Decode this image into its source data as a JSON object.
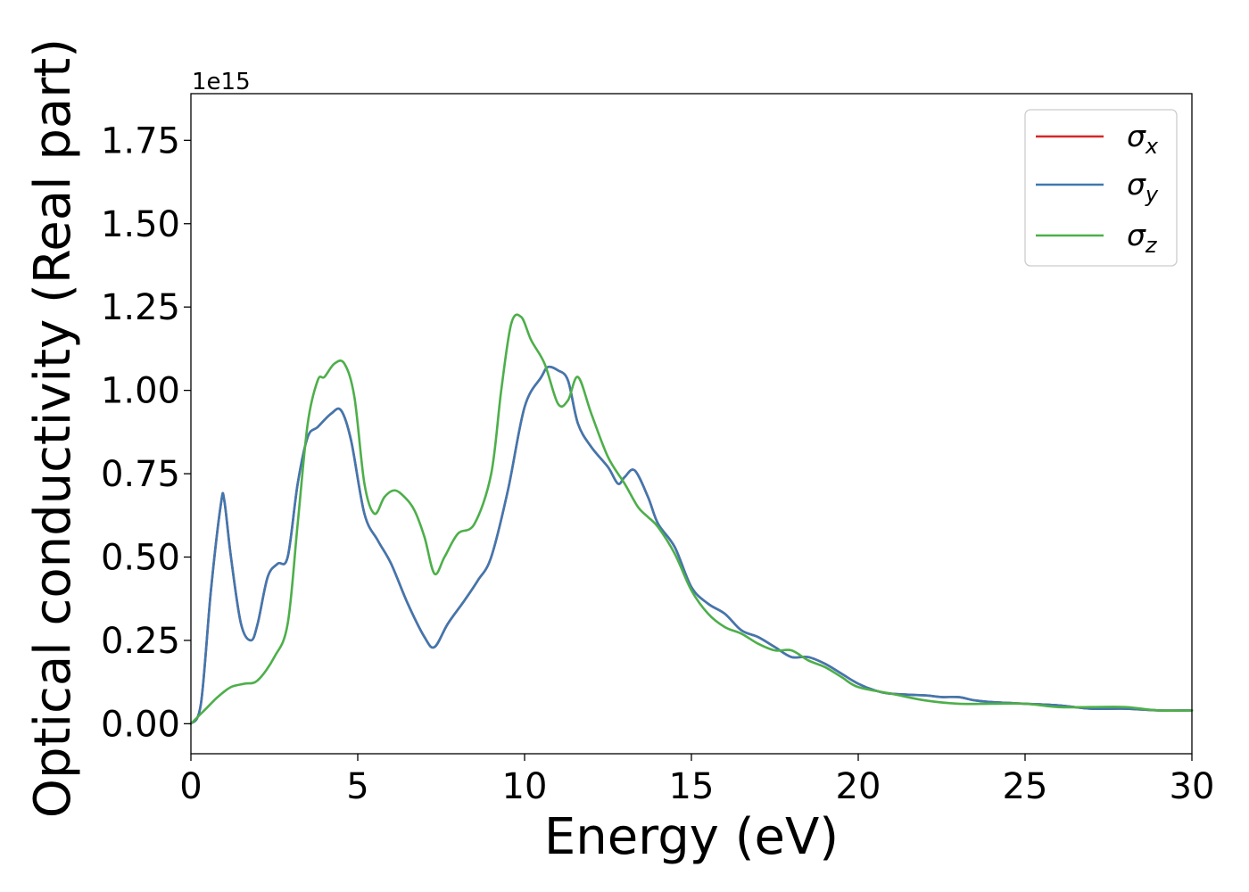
{
  "chart_data": {
    "type": "line",
    "xlabel": "Energy (eV)",
    "ylabel": "Optical conductivity (Real part)",
    "offset_label": "1e15",
    "xlim": [
      0,
      30
    ],
    "ylim": [
      -0.09,
      1.89
    ],
    "xticks": [
      0,
      5,
      10,
      15,
      20,
      25,
      30
    ],
    "xtick_labels": [
      "0",
      "5",
      "10",
      "15",
      "20",
      "25",
      "30"
    ],
    "yticks": [
      0.0,
      0.25,
      0.5,
      0.75,
      1.0,
      1.25,
      1.5,
      1.75
    ],
    "ytick_labels": [
      "0.00",
      "0.25",
      "0.50",
      "0.75",
      "1.00",
      "1.25",
      "1.50",
      "1.75"
    ],
    "grid": false,
    "legend_position": "top-right",
    "series": [
      {
        "name": "σx",
        "legend_base": "σ",
        "legend_sub": "x",
        "color": "#d62728",
        "x": [
          0,
          0.3,
          0.6,
          0.9,
          1.0,
          1.2,
          1.5,
          1.8,
          2.0,
          2.3,
          2.6,
          2.9,
          3.2,
          3.5,
          3.8,
          4.2,
          4.5,
          4.8,
          5.2,
          5.6,
          6.0,
          6.5,
          7.0,
          7.3,
          7.7,
          8.2,
          8.6,
          9.0,
          9.5,
          10.0,
          10.5,
          10.7,
          11.0,
          11.3,
          11.6,
          12.0,
          12.5,
          12.8,
          13.0,
          13.3,
          13.7,
          14.0,
          14.5,
          15.0,
          15.5,
          16.0,
          16.5,
          17.0,
          17.5,
          18.0,
          18.5,
          19.0,
          19.5,
          20.0,
          20.5,
          21.0,
          22.0,
          22.5,
          23.0,
          23.5,
          24.0,
          25.0,
          26.0,
          27.0,
          28.0,
          29.0,
          30.0
        ],
        "values": [
          0.0,
          0.06,
          0.4,
          0.66,
          0.67,
          0.5,
          0.3,
          0.25,
          0.3,
          0.44,
          0.48,
          0.5,
          0.72,
          0.86,
          0.89,
          0.93,
          0.94,
          0.85,
          0.63,
          0.55,
          0.48,
          0.36,
          0.26,
          0.23,
          0.3,
          0.37,
          0.43,
          0.5,
          0.7,
          0.95,
          1.04,
          1.07,
          1.06,
          1.03,
          0.9,
          0.83,
          0.77,
          0.72,
          0.74,
          0.76,
          0.68,
          0.6,
          0.53,
          0.41,
          0.36,
          0.33,
          0.28,
          0.26,
          0.23,
          0.2,
          0.2,
          0.18,
          0.15,
          0.12,
          0.1,
          0.09,
          0.085,
          0.08,
          0.08,
          0.07,
          0.065,
          0.06,
          0.055,
          0.045,
          0.045,
          0.04,
          0.04
        ]
      },
      {
        "name": "σy",
        "legend_base": "σ",
        "legend_sub": "y",
        "color": "#3f78b0",
        "x": [
          0,
          0.3,
          0.6,
          0.9,
          1.0,
          1.2,
          1.5,
          1.8,
          2.0,
          2.3,
          2.6,
          2.9,
          3.2,
          3.5,
          3.8,
          4.2,
          4.5,
          4.8,
          5.2,
          5.6,
          6.0,
          6.5,
          7.0,
          7.3,
          7.7,
          8.2,
          8.6,
          9.0,
          9.5,
          10.0,
          10.5,
          10.7,
          11.0,
          11.3,
          11.6,
          12.0,
          12.5,
          12.8,
          13.0,
          13.3,
          13.7,
          14.0,
          14.5,
          15.0,
          15.5,
          16.0,
          16.5,
          17.0,
          17.5,
          18.0,
          18.5,
          19.0,
          19.5,
          20.0,
          20.5,
          21.0,
          22.0,
          22.5,
          23.0,
          23.5,
          24.0,
          25.0,
          26.0,
          27.0,
          28.0,
          29.0,
          30.0
        ],
        "values": [
          0.0,
          0.06,
          0.4,
          0.66,
          0.67,
          0.5,
          0.3,
          0.25,
          0.3,
          0.44,
          0.48,
          0.5,
          0.72,
          0.86,
          0.89,
          0.93,
          0.94,
          0.85,
          0.63,
          0.55,
          0.48,
          0.36,
          0.26,
          0.23,
          0.3,
          0.37,
          0.43,
          0.5,
          0.7,
          0.95,
          1.04,
          1.07,
          1.06,
          1.03,
          0.9,
          0.83,
          0.77,
          0.72,
          0.74,
          0.76,
          0.68,
          0.6,
          0.53,
          0.41,
          0.36,
          0.33,
          0.28,
          0.26,
          0.23,
          0.2,
          0.2,
          0.18,
          0.15,
          0.12,
          0.1,
          0.09,
          0.085,
          0.08,
          0.08,
          0.07,
          0.065,
          0.06,
          0.055,
          0.045,
          0.045,
          0.04,
          0.04
        ]
      },
      {
        "name": "σz",
        "legend_base": "σ",
        "legend_sub": "z",
        "color": "#4daf4a",
        "x": [
          0,
          0.2,
          0.5,
          0.8,
          1.2,
          1.6,
          2.0,
          2.5,
          2.9,
          3.2,
          3.5,
          3.8,
          4.0,
          4.3,
          4.6,
          4.9,
          5.2,
          5.5,
          5.8,
          6.1,
          6.4,
          6.7,
          7.0,
          7.3,
          7.6,
          8.0,
          8.5,
          9.0,
          9.3,
          9.6,
          9.9,
          10.2,
          10.6,
          11.0,
          11.3,
          11.6,
          12.0,
          12.5,
          13.0,
          13.4,
          13.7,
          14.0,
          14.5,
          15.0,
          15.5,
          16.0,
          16.5,
          17.0,
          17.5,
          18.0,
          18.5,
          19.0,
          19.5,
          20.0,
          21.0,
          22.0,
          23.0,
          24.0,
          25.0,
          26.0,
          27.0,
          28.0,
          29.0,
          30.0
        ],
        "values": [
          0.0,
          0.02,
          0.05,
          0.08,
          0.11,
          0.12,
          0.13,
          0.2,
          0.3,
          0.6,
          0.9,
          1.03,
          1.04,
          1.08,
          1.08,
          0.98,
          0.72,
          0.63,
          0.68,
          0.7,
          0.68,
          0.64,
          0.56,
          0.45,
          0.5,
          0.57,
          0.6,
          0.75,
          1.0,
          1.2,
          1.22,
          1.15,
          1.08,
          0.96,
          0.97,
          1.04,
          0.93,
          0.8,
          0.72,
          0.65,
          0.62,
          0.59,
          0.51,
          0.4,
          0.33,
          0.29,
          0.27,
          0.24,
          0.22,
          0.22,
          0.19,
          0.17,
          0.14,
          0.11,
          0.09,
          0.07,
          0.06,
          0.06,
          0.06,
          0.05,
          0.05,
          0.05,
          0.04,
          0.04
        ]
      }
    ]
  }
}
